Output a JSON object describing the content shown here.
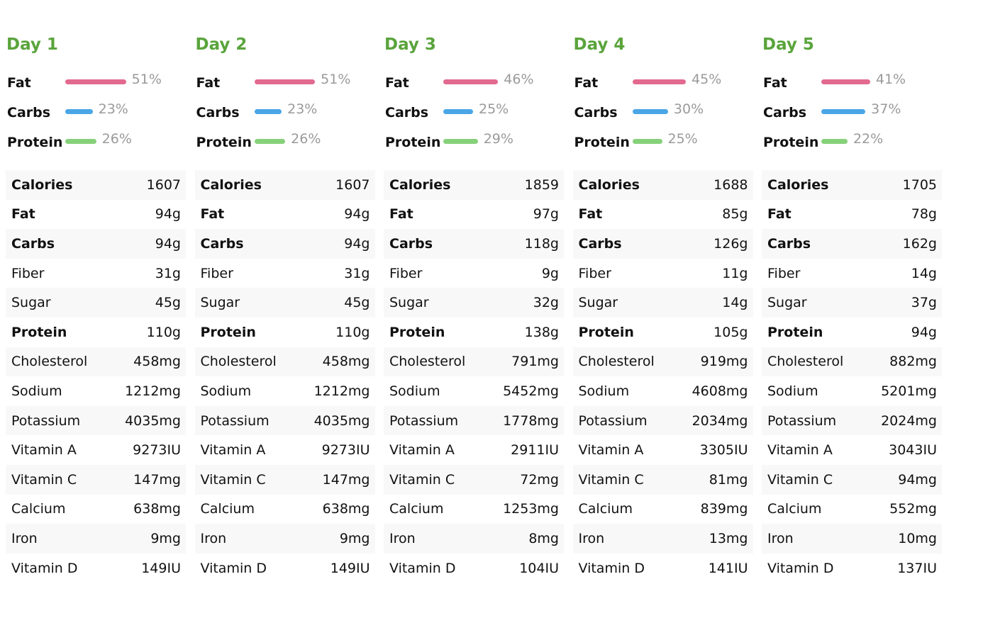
{
  "colors": {
    "day_title": "#5aa43c",
    "fat_bar": "#e2698f",
    "carbs_bar": "#4aa6e6",
    "protein_bar": "#86d17a",
    "pct_text": "#9a9a9a",
    "row_shade": "#f8f8f8"
  },
  "nutrient_labels": [
    "Calories",
    "Fat",
    "Carbs",
    "Fiber",
    "Sugar",
    "Protein",
    "Cholesterol",
    "Sodium",
    "Potassium",
    "Vitamin A",
    "Vitamin C",
    "Calcium",
    "Iron",
    "Vitamin D"
  ],
  "days": [
    {
      "title": "Day 1",
      "macros": [
        {
          "label": "Fat",
          "pct_value": 51,
          "pct": "51%"
        },
        {
          "label": "Carbs",
          "pct_value": 23,
          "pct": "23%"
        },
        {
          "label": "Protein",
          "pct_value": 26,
          "pct": "26%"
        }
      ],
      "values": [
        "1607",
        "94g",
        "94g",
        "31g",
        "45g",
        "110g",
        "458mg",
        "1212mg",
        "4035mg",
        "9273IU",
        "147mg",
        "638mg",
        "9mg",
        "149IU"
      ]
    },
    {
      "title": "Day 2",
      "macros": [
        {
          "label": "Fat",
          "pct_value": 51,
          "pct": "51%"
        },
        {
          "label": "Carbs",
          "pct_value": 23,
          "pct": "23%"
        },
        {
          "label": "Protein",
          "pct_value": 26,
          "pct": "26%"
        }
      ],
      "values": [
        "1607",
        "94g",
        "94g",
        "31g",
        "45g",
        "110g",
        "458mg",
        "1212mg",
        "4035mg",
        "9273IU",
        "147mg",
        "638mg",
        "9mg",
        "149IU"
      ]
    },
    {
      "title": "Day 3",
      "macros": [
        {
          "label": "Fat",
          "pct_value": 46,
          "pct": "46%"
        },
        {
          "label": "Carbs",
          "pct_value": 25,
          "pct": "25%"
        },
        {
          "label": "Protein",
          "pct_value": 29,
          "pct": "29%"
        }
      ],
      "values": [
        "1859",
        "97g",
        "118g",
        "9g",
        "32g",
        "138g",
        "791mg",
        "5452mg",
        "1778mg",
        "2911IU",
        "72mg",
        "1253mg",
        "8mg",
        "104IU"
      ]
    },
    {
      "title": "Day 4",
      "macros": [
        {
          "label": "Fat",
          "pct_value": 45,
          "pct": "45%"
        },
        {
          "label": "Carbs",
          "pct_value": 30,
          "pct": "30%"
        },
        {
          "label": "Protein",
          "pct_value": 25,
          "pct": "25%"
        }
      ],
      "values": [
        "1688",
        "85g",
        "126g",
        "11g",
        "14g",
        "105g",
        "919mg",
        "4608mg",
        "2034mg",
        "3305IU",
        "81mg",
        "839mg",
        "13mg",
        "141IU"
      ]
    },
    {
      "title": "Day 5",
      "macros": [
        {
          "label": "Fat",
          "pct_value": 41,
          "pct": "41%"
        },
        {
          "label": "Carbs",
          "pct_value": 37,
          "pct": "37%"
        },
        {
          "label": "Protein",
          "pct_value": 22,
          "pct": "22%"
        }
      ],
      "values": [
        "1705",
        "78g",
        "162g",
        "14g",
        "37g",
        "94g",
        "882mg",
        "5201mg",
        "2024mg",
        "3043IU",
        "94mg",
        "552mg",
        "10mg",
        "137IU"
      ]
    }
  ]
}
